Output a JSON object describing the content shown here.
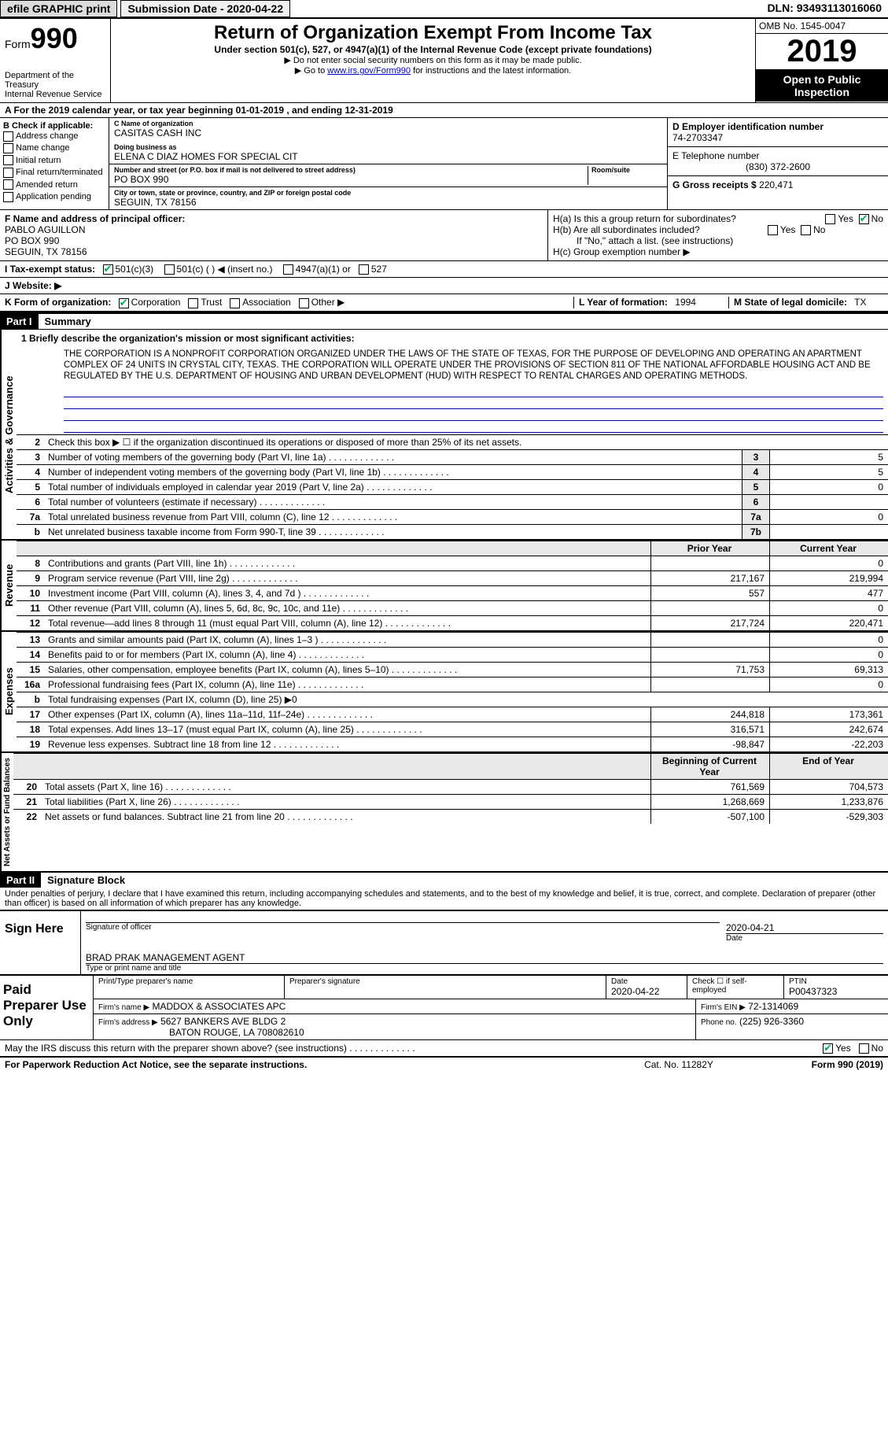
{
  "topbar": {
    "efile": "efile GRAPHIC print",
    "subdate_label": "Submission Date - 2020-04-22",
    "dln": "DLN: 93493113016060"
  },
  "header": {
    "form_word": "Form",
    "form_no": "990",
    "dept": "Department of the Treasury\nInternal Revenue Service",
    "title": "Return of Organization Exempt From Income Tax",
    "sub1": "Under section 501(c), 527, or 4947(a)(1) of the Internal Revenue Code (except private foundations)",
    "sub2": "Do not enter social security numbers on this form as it may be made public.",
    "sub3_pre": "Go to ",
    "sub3_link": "www.irs.gov/Form990",
    "sub3_post": " for instructions and the latest information.",
    "omb": "OMB No. 1545-0047",
    "year": "2019",
    "public": "Open to Public Inspection"
  },
  "rowA": "A  For the 2019 calendar year, or tax year beginning 01-01-2019    , and ending 12-31-2019",
  "B": {
    "heading": "B Check if applicable:",
    "items": [
      "Address change",
      "Name change",
      "Initial return",
      "Final return/terminated",
      "Amended return",
      "Application pending"
    ]
  },
  "C": {
    "name_label": "C Name of organization",
    "name": "CASITAS CASH INC",
    "dba_label": "Doing business as",
    "dba": "ELENA C DIAZ HOMES FOR SPECIAL CIT",
    "addr_label": "Number and street (or P.O. box if mail is not delivered to street address)",
    "room_label": "Room/suite",
    "addr": "PO BOX 990",
    "city_label": "City or town, state or province, country, and ZIP or foreign postal code",
    "city": "SEGUIN, TX  78156"
  },
  "D": {
    "label": "D Employer identification number",
    "val": "74-2703347"
  },
  "E": {
    "label": "E Telephone number",
    "val": "(830) 372-2600"
  },
  "G": {
    "label": "G Gross receipts $",
    "val": "220,471"
  },
  "F": {
    "label": "F  Name and address of principal officer:",
    "name": "PABLO AGUILLON",
    "addr1": "PO BOX 990",
    "addr2": "SEGUIN, TX  78156"
  },
  "H": {
    "a": "H(a)  Is this a group return for subordinates?",
    "b": "H(b)  Are all subordinates included?",
    "b_note": "If \"No,\" attach a list. (see instructions)",
    "c": "H(c)  Group exemption number ▶",
    "yes": "Yes",
    "no": "No"
  },
  "I": {
    "label": "I  Tax-exempt status:",
    "o1": "501(c)(3)",
    "o2": "501(c) (  ) ◀ (insert no.)",
    "o3": "4947(a)(1) or",
    "o4": "527"
  },
  "J": {
    "label": "J  Website: ▶",
    "val": ""
  },
  "K": {
    "label": "K Form of organization:",
    "o1": "Corporation",
    "o2": "Trust",
    "o3": "Association",
    "o4": "Other ▶"
  },
  "L": {
    "label": "L Year of formation:",
    "val": "1994"
  },
  "M": {
    "label": "M State of legal domicile:",
    "val": "TX"
  },
  "part1": {
    "tag": "Part I",
    "title": "Summary"
  },
  "mission_label": "1  Briefly describe the organization's mission or most significant activities:",
  "mission": "THE CORPORATION IS A NONPROFIT CORPORATION ORGANIZED UNDER THE LAWS OF THE STATE OF TEXAS, FOR THE PURPOSE OF DEVELOPING AND OPERATING AN APARTMENT COMPLEX OF 24 UNITS IN CRYSTAL CITY, TEXAS. THE CORPORATION WILL OPERATE UNDER THE PROVISIONS OF SECTION 811 OF THE NATIONAL AFFORDABLE HOUSING ACT AND BE REGULATED BY THE U.S. DEPARTMENT OF HOUSING AND URBAN DEVELOPMENT (HUD) WITH RESPECT TO RENTAL CHARGES AND OPERATING METHODS.",
  "gov": {
    "l2": "Check this box ▶ ☐  if the organization discontinued its operations or disposed of more than 25% of its net assets.",
    "l3": {
      "t": "Number of voting members of the governing body (Part VI, line 1a)",
      "b": "3",
      "v": "5"
    },
    "l4": {
      "t": "Number of independent voting members of the governing body (Part VI, line 1b)",
      "b": "4",
      "v": "5"
    },
    "l5": {
      "t": "Total number of individuals employed in calendar year 2019 (Part V, line 2a)",
      "b": "5",
      "v": "0"
    },
    "l6": {
      "t": "Total number of volunteers (estimate if necessary)",
      "b": "6",
      "v": ""
    },
    "l7a": {
      "t": "Total unrelated business revenue from Part VIII, column (C), line 12",
      "b": "7a",
      "v": "0"
    },
    "l7b": {
      "t": "Net unrelated business taxable income from Form 990-T, line 39",
      "b": "7b",
      "v": ""
    }
  },
  "revcols": {
    "prior": "Prior Year",
    "current": "Current Year"
  },
  "rev": [
    {
      "n": "8",
      "t": "Contributions and grants (Part VIII, line 1h)",
      "p": "",
      "c": "0"
    },
    {
      "n": "9",
      "t": "Program service revenue (Part VIII, line 2g)",
      "p": "217,167",
      "c": "219,994"
    },
    {
      "n": "10",
      "t": "Investment income (Part VIII, column (A), lines 3, 4, and 7d )",
      "p": "557",
      "c": "477"
    },
    {
      "n": "11",
      "t": "Other revenue (Part VIII, column (A), lines 5, 6d, 8c, 9c, 10c, and 11e)",
      "p": "",
      "c": "0"
    },
    {
      "n": "12",
      "t": "Total revenue—add lines 8 through 11 (must equal Part VIII, column (A), line 12)",
      "p": "217,724",
      "c": "220,471"
    }
  ],
  "exp": [
    {
      "n": "13",
      "t": "Grants and similar amounts paid (Part IX, column (A), lines 1–3 )",
      "p": "",
      "c": "0"
    },
    {
      "n": "14",
      "t": "Benefits paid to or for members (Part IX, column (A), line 4)",
      "p": "",
      "c": "0"
    },
    {
      "n": "15",
      "t": "Salaries, other compensation, employee benefits (Part IX, column (A), lines 5–10)",
      "p": "71,753",
      "c": "69,313"
    },
    {
      "n": "16a",
      "t": "Professional fundraising fees (Part IX, column (A), line 11e)",
      "p": "",
      "c": "0"
    },
    {
      "n": "b",
      "t": "Total fundraising expenses (Part IX, column (D), line 25) ▶0",
      "p": "—",
      "c": "—"
    },
    {
      "n": "17",
      "t": "Other expenses (Part IX, column (A), lines 11a–11d, 11f–24e)",
      "p": "244,818",
      "c": "173,361"
    },
    {
      "n": "18",
      "t": "Total expenses. Add lines 13–17 (must equal Part IX, column (A), line 25)",
      "p": "316,571",
      "c": "242,674"
    },
    {
      "n": "19",
      "t": "Revenue less expenses. Subtract line 18 from line 12",
      "p": "-98,847",
      "c": "-22,203"
    }
  ],
  "netcols": {
    "begin": "Beginning of Current Year",
    "end": "End of Year"
  },
  "net": [
    {
      "n": "20",
      "t": "Total assets (Part X, line 16)",
      "p": "761,569",
      "c": "704,573"
    },
    {
      "n": "21",
      "t": "Total liabilities (Part X, line 26)",
      "p": "1,268,669",
      "c": "1,233,876"
    },
    {
      "n": "22",
      "t": "Net assets or fund balances. Subtract line 21 from line 20",
      "p": "-507,100",
      "c": "-529,303"
    }
  ],
  "part2": {
    "tag": "Part II",
    "title": "Signature Block"
  },
  "perjury": "Under penalties of perjury, I declare that I have examined this return, including accompanying schedules and statements, and to the best of my knowledge and belief, it is true, correct, and complete. Declaration of preparer (other than officer) is based on all information of which preparer has any knowledge.",
  "sign": {
    "here": "Sign Here",
    "sig_of_officer": "Signature of officer",
    "date": "Date",
    "date_val": "2020-04-21",
    "name": "BRAD PRAK MANAGEMENT AGENT",
    "name_label": "Type or print name and title"
  },
  "paid": {
    "label": "Paid Preparer Use Only",
    "h1": "Print/Type preparer's name",
    "h2": "Preparer's signature",
    "h3": "Date",
    "h3v": "2020-04-22",
    "h4": "Check ☐ if self-employed",
    "h5": "PTIN",
    "h5v": "P00437323",
    "firm_label": "Firm's name    ▶",
    "firm": "MADDOX & ASSOCIATES APC",
    "ein_label": "Firm's EIN ▶",
    "ein": "72-1314069",
    "addr_label": "Firm's address ▶",
    "addr1": "5627 BANKERS AVE BLDG 2",
    "addr2": "BATON ROUGE, LA  708082610",
    "phone_label": "Phone no.",
    "phone": "(225) 926-3360"
  },
  "discuss": {
    "q": "May the IRS discuss this return with the preparer shown above? (see instructions)",
    "yes": "Yes",
    "no": "No"
  },
  "footer": {
    "l": "For Paperwork Reduction Act Notice, see the separate instructions.",
    "m": "Cat. No. 11282Y",
    "r": "Form 990 (2019)"
  },
  "vtabs": {
    "gov": "Activities & Governance",
    "rev": "Revenue",
    "exp": "Expenses",
    "net": "Net Assets or Fund Balances"
  }
}
